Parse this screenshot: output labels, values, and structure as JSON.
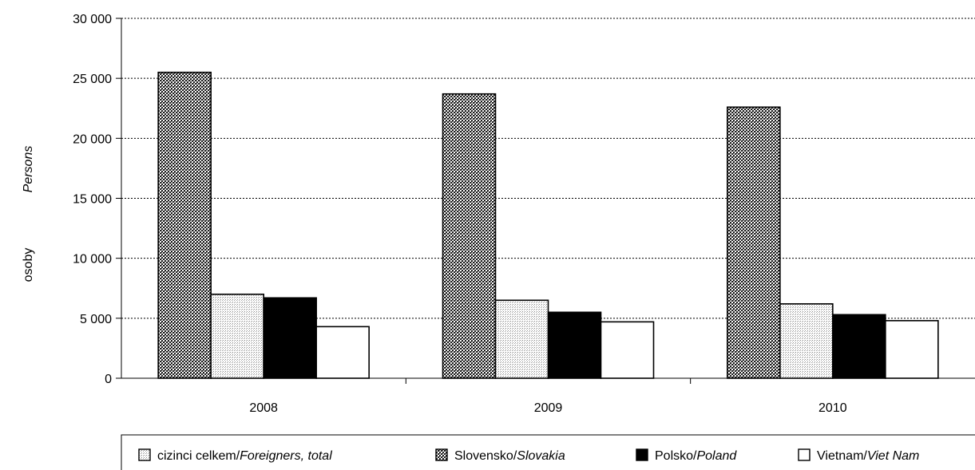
{
  "chart_data": {
    "type": "bar",
    "title": "",
    "ylabel_cz": "osoby",
    "ylabel_en": "Persons",
    "ylim": [
      0,
      30000
    ],
    "yticks": [
      0,
      5000,
      10000,
      15000,
      20000,
      25000,
      30000
    ],
    "ytick_labels": [
      "0",
      "5 000",
      "10 000",
      "15 000",
      "20 000",
      "25 000",
      "30 000"
    ],
    "categories": [
      "2008",
      "2009",
      "2010"
    ],
    "grid": true,
    "legend_position": "bottom",
    "series": [
      {
        "name_cz": "Slovensko/",
        "name_en": "Slovakia",
        "pattern": "checker",
        "values": [
          25500,
          23700,
          22600
        ]
      },
      {
        "name_cz": "cizinci celkem/",
        "name_en": "Foreigners, total",
        "pattern": "dots",
        "values": [
          7000,
          6500,
          6200
        ]
      },
      {
        "name_cz": "Polsko/",
        "name_en": "Poland",
        "pattern": "solid",
        "values": [
          6700,
          5500,
          5300
        ]
      },
      {
        "name_cz": "Vietnam/",
        "name_en": "Viet Nam",
        "pattern": "white",
        "values": [
          4300,
          4700,
          4800
        ]
      }
    ],
    "legend_order": [
      1,
      0,
      2,
      3
    ]
  }
}
